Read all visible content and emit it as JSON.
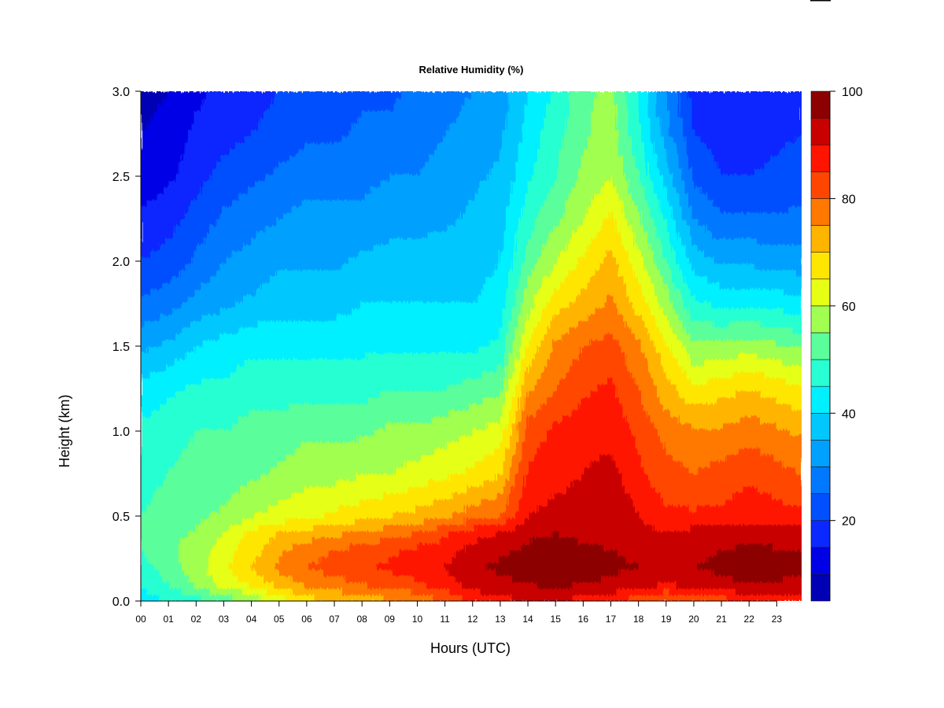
{
  "chart_data": {
    "type": "heatmap",
    "title": "Relative Humidity (%)",
    "xlabel": "Hours (UTC)",
    "ylabel": "Height (km)",
    "xlim": [
      0,
      23.9
    ],
    "ylim": [
      0.0,
      3.0
    ],
    "x_ticks": [
      "00",
      "01",
      "02",
      "03",
      "04",
      "05",
      "06",
      "07",
      "08",
      "09",
      "10",
      "11",
      "12",
      "13",
      "14",
      "15",
      "16",
      "17",
      "18",
      "19",
      "20",
      "21",
      "22",
      "23"
    ],
    "y_ticks": [
      "0.0",
      "0.5",
      "1.0",
      "1.5",
      "2.0",
      "2.5",
      "3.0"
    ],
    "x_tick_values": [
      0,
      1,
      2,
      3,
      4,
      5,
      6,
      7,
      8,
      9,
      10,
      11,
      12,
      13,
      14,
      15,
      16,
      17,
      18,
      19,
      20,
      21,
      22,
      23
    ],
    "y_tick_values": [
      0.0,
      0.5,
      1.0,
      1.5,
      2.0,
      2.5,
      3.0
    ],
    "colorbar": {
      "range": [
        5,
        100
      ],
      "tick_labels": [
        "20",
        "40",
        "60",
        "80",
        "100"
      ],
      "tick_values": [
        20,
        40,
        60,
        80,
        100
      ],
      "levels": [
        5,
        10,
        15,
        20,
        25,
        30,
        35,
        40,
        45,
        50,
        55,
        60,
        65,
        70,
        75,
        80,
        85,
        90,
        95,
        100
      ],
      "colors": [
        "#000080",
        "#0000b4",
        "#0000e6",
        "#0a28ff",
        "#0050ff",
        "#0078ff",
        "#00a0ff",
        "#00c8ff",
        "#00f0ff",
        "#28ffd2",
        "#5aff9b",
        "#a0ff50",
        "#e6ff14",
        "#ffe600",
        "#ffb400",
        "#ff7800",
        "#ff4600",
        "#ff1400",
        "#c80000",
        "#8c0000"
      ]
    },
    "grid_x_hours": [
      0,
      1,
      2,
      3,
      4,
      5,
      6,
      7,
      8,
      9,
      10,
      11,
      12,
      13,
      14,
      15,
      16,
      17,
      18,
      19,
      20,
      21,
      22,
      23.9
    ],
    "grid_y_km": [
      0.0,
      0.1,
      0.2,
      0.3,
      0.4,
      0.5,
      0.75,
      1.0,
      1.25,
      1.5,
      1.75,
      2.0,
      2.25,
      2.5,
      2.75,
      3.0
    ],
    "rh_values": [
      [
        42,
        45,
        48,
        52,
        56,
        62,
        68,
        70,
        72,
        74,
        76,
        80,
        86,
        88,
        90,
        90,
        88,
        86,
        82,
        78,
        80,
        82,
        86,
        88
      ],
      [
        46,
        50,
        56,
        62,
        66,
        72,
        76,
        78,
        80,
        82,
        84,
        88,
        92,
        94,
        95,
        96,
        95,
        94,
        92,
        90,
        92,
        94,
        95,
        94
      ],
      [
        48,
        52,
        58,
        64,
        70,
        76,
        80,
        82,
        84,
        86,
        88,
        90,
        94,
        96,
        97,
        98,
        97,
        96,
        95,
        94,
        95,
        96,
        97,
        96
      ],
      [
        50,
        54,
        58,
        62,
        68,
        74,
        78,
        80,
        82,
        84,
        86,
        88,
        92,
        94,
        96,
        97,
        96,
        95,
        94,
        93,
        94,
        95,
        96,
        95
      ],
      [
        50,
        52,
        56,
        60,
        66,
        70,
        72,
        74,
        76,
        78,
        80,
        84,
        88,
        90,
        94,
        95,
        94,
        94,
        92,
        90,
        92,
        92,
        93,
        92
      ],
      [
        50,
        52,
        54,
        56,
        60,
        62,
        64,
        66,
        68,
        70,
        72,
        74,
        78,
        80,
        90,
        92,
        93,
        94,
        90,
        86,
        86,
        86,
        88,
        86
      ],
      [
        48,
        50,
        52,
        52,
        54,
        56,
        58,
        58,
        60,
        60,
        62,
        64,
        66,
        70,
        86,
        88,
        90,
        92,
        86,
        82,
        80,
        82,
        84,
        80
      ],
      [
        46,
        48,
        50,
        50,
        52,
        52,
        54,
        54,
        54,
        56,
        56,
        58,
        60,
        62,
        82,
        86,
        88,
        88,
        84,
        78,
        76,
        76,
        78,
        74
      ],
      [
        42,
        44,
        46,
        46,
        48,
        48,
        48,
        48,
        48,
        50,
        50,
        50,
        52,
        54,
        74,
        80,
        84,
        86,
        80,
        72,
        66,
        68,
        70,
        66
      ],
      [
        34,
        36,
        40,
        42,
        44,
        44,
        44,
        44,
        44,
        44,
        44,
        44,
        44,
        46,
        66,
        76,
        80,
        82,
        76,
        66,
        56,
        56,
        58,
        54
      ],
      [
        26,
        28,
        32,
        34,
        36,
        38,
        38,
        38,
        40,
        40,
        40,
        40,
        40,
        42,
        58,
        68,
        72,
        76,
        68,
        58,
        46,
        44,
        44,
        42
      ],
      [
        20,
        22,
        26,
        30,
        32,
        34,
        34,
        34,
        36,
        36,
        36,
        38,
        38,
        40,
        52,
        60,
        66,
        72,
        62,
        50,
        38,
        34,
        34,
        32
      ],
      [
        16,
        18,
        22,
        26,
        28,
        30,
        32,
        32,
        32,
        34,
        34,
        34,
        36,
        38,
        48,
        54,
        60,
        66,
        56,
        44,
        30,
        26,
        26,
        26
      ],
      [
        12,
        14,
        18,
        22,
        24,
        26,
        28,
        28,
        28,
        30,
        30,
        32,
        34,
        36,
        44,
        50,
        56,
        60,
        50,
        38,
        24,
        20,
        20,
        22
      ],
      [
        10,
        12,
        16,
        18,
        20,
        22,
        24,
        24,
        26,
        26,
        28,
        30,
        32,
        34,
        42,
        48,
        54,
        58,
        46,
        32,
        20,
        18,
        18,
        20
      ],
      [
        8,
        10,
        14,
        16,
        18,
        20,
        22,
        22,
        24,
        24,
        26,
        28,
        30,
        32,
        40,
        46,
        54,
        56,
        44,
        30,
        18,
        16,
        18,
        20
      ]
    ]
  }
}
